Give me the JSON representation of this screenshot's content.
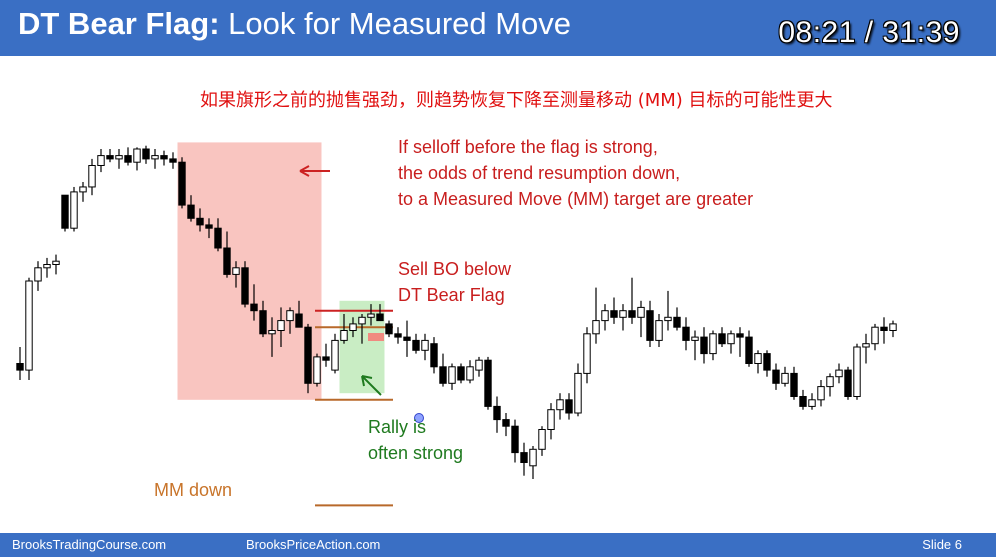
{
  "header": {
    "title_bold": "DT Bear Flag:",
    "title_rest": " Look for Measured Move",
    "timer": "08:21 / 31:39"
  },
  "annotations": {
    "chinese": "如果旗形之前的抛售强劲，则趋势恢复下降至测量移动 (MM) 目标的可能性更大",
    "selloff_1": "If selloff before the flag is strong,",
    "selloff_2": "the odds of trend resumption down,",
    "selloff_3": "to a Measured Move (MM) target are greater",
    "sell_bo_1": "Sell BO below",
    "sell_bo_2": "DT Bear Flag",
    "rally_1": "Rally is",
    "rally_2": "often strong",
    "mm_down": "MM down"
  },
  "footer": {
    "left": "BrooksTradingCourse.com",
    "center": "BrooksPriceAction.com",
    "right": "Slide  6"
  },
  "colors": {
    "header_bg": "#3a6fc4",
    "selloff_box": "#f9c5c0",
    "flag_box": "#c9edc4",
    "red_text": "#c81e1e",
    "green_text": "#1f7a1f",
    "orange_text": "#c8742a",
    "bull_candle": "#ffffff",
    "bear_candle": "#000000"
  },
  "chart_data": {
    "type": "candlestick",
    "title": "",
    "description_note": "",
    "candles": [
      [
        10,
        20,
        0,
        6
      ],
      [
        6,
        62,
        0,
        60
      ],
      [
        60,
        72,
        54,
        68
      ],
      [
        68,
        74,
        62,
        70
      ],
      [
        70,
        76,
        64,
        72
      ],
      [
        112,
        112,
        90,
        92
      ],
      [
        92,
        117,
        90,
        114
      ],
      [
        114,
        120,
        108,
        117
      ],
      [
        117,
        134,
        112,
        130
      ],
      [
        130,
        140,
        126,
        136
      ],
      [
        136,
        140,
        132,
        134
      ],
      [
        134,
        140,
        128,
        136
      ],
      [
        136,
        141,
        130,
        132
      ],
      [
        132,
        141,
        127,
        140
      ],
      [
        140,
        142,
        131,
        134
      ],
      [
        134,
        140,
        128,
        136
      ],
      [
        136,
        139,
        130,
        134
      ],
      [
        134,
        138,
        128,
        132
      ],
      [
        132,
        135,
        104,
        106
      ],
      [
        106,
        112,
        96,
        98
      ],
      [
        98,
        104,
        90,
        94
      ],
      [
        94,
        98,
        86,
        92
      ],
      [
        92,
        98,
        78,
        80
      ],
      [
        80,
        90,
        62,
        64
      ],
      [
        64,
        72,
        56,
        68
      ],
      [
        68,
        72,
        44,
        46
      ],
      [
        46,
        58,
        36,
        42
      ],
      [
        42,
        48,
        26,
        28
      ],
      [
        28,
        38,
        14,
        30
      ],
      [
        30,
        44,
        20,
        36
      ],
      [
        36,
        44,
        28,
        42
      ],
      [
        40,
        48,
        32,
        32
      ],
      [
        32,
        34,
        -8,
        -2
      ],
      [
        -2,
        16,
        -4,
        14
      ],
      [
        14,
        22,
        8,
        12
      ],
      [
        6,
        28,
        4,
        24
      ],
      [
        24,
        40,
        22,
        30
      ],
      [
        30,
        38,
        26,
        34
      ],
      [
        34,
        40,
        22,
        38
      ],
      [
        38,
        46,
        33,
        40
      ],
      [
        40,
        46,
        36,
        36
      ],
      [
        34,
        36,
        26,
        28
      ],
      [
        28,
        32,
        22,
        26
      ],
      [
        26,
        36,
        14,
        24
      ],
      [
        24,
        28,
        16,
        18
      ],
      [
        18,
        28,
        12,
        24
      ],
      [
        22,
        26,
        4,
        8
      ],
      [
        8,
        16,
        -4,
        -2
      ],
      [
        -2,
        10,
        -6,
        8
      ],
      [
        8,
        10,
        -2,
        0
      ],
      [
        0,
        12,
        -2,
        8
      ],
      [
        6,
        14,
        2,
        12
      ],
      [
        12,
        14,
        -18,
        -16
      ],
      [
        -16,
        -10,
        -32,
        -24
      ],
      [
        -24,
        -20,
        -34,
        -28
      ],
      [
        -28,
        -24,
        -50,
        -44
      ],
      [
        -44,
        -38,
        -58,
        -50
      ],
      [
        -52,
        -40,
        -60,
        -42
      ],
      [
        -42,
        -28,
        -46,
        -30
      ],
      [
        -30,
        -14,
        -36,
        -18
      ],
      [
        -18,
        -8,
        -24,
        -12
      ],
      [
        -12,
        -8,
        -24,
        -20
      ],
      [
        -20,
        10,
        -22,
        4
      ],
      [
        4,
        32,
        -2,
        28
      ],
      [
        28,
        56,
        22,
        36
      ],
      [
        36,
        46,
        30,
        42
      ],
      [
        42,
        50,
        34,
        38
      ],
      [
        38,
        46,
        30,
        42
      ],
      [
        42,
        62,
        34,
        38
      ],
      [
        38,
        48,
        26,
        44
      ],
      [
        42,
        48,
        20,
        24
      ],
      [
        24,
        40,
        20,
        36
      ],
      [
        36,
        54,
        30,
        38
      ],
      [
        38,
        44,
        30,
        32
      ],
      [
        32,
        38,
        18,
        24
      ],
      [
        24,
        30,
        12,
        26
      ],
      [
        26,
        32,
        10,
        16
      ],
      [
        16,
        30,
        12,
        28
      ],
      [
        28,
        32,
        20,
        22
      ],
      [
        22,
        30,
        16,
        28
      ],
      [
        28,
        32,
        14,
        26
      ],
      [
        26,
        30,
        8,
        10
      ],
      [
        10,
        18,
        4,
        16
      ],
      [
        16,
        18,
        2,
        6
      ],
      [
        6,
        10,
        -6,
        -2
      ],
      [
        -2,
        8,
        -4,
        4
      ],
      [
        4,
        8,
        -12,
        -10
      ],
      [
        -10,
        -6,
        -18,
        -16
      ],
      [
        -16,
        -8,
        -18,
        -12
      ],
      [
        -12,
        0,
        -16,
        -4
      ],
      [
        -4,
        4,
        -10,
        2
      ],
      [
        2,
        10,
        -2,
        6
      ],
      [
        6,
        8,
        -12,
        -10
      ],
      [
        -10,
        22,
        -12,
        20
      ],
      [
        20,
        28,
        10,
        22
      ],
      [
        22,
        34,
        18,
        32
      ],
      [
        32,
        38,
        22,
        30
      ],
      [
        30,
        36,
        26,
        34
      ]
    ],
    "candle_format": [
      "open",
      "high",
      "low",
      "close"
    ],
    "y_axis_visible": false,
    "x_axis_visible": false,
    "zones": [
      {
        "name": "selloff",
        "from_index": 18,
        "to_index": 33,
        "low": -12,
        "high": 144
      },
      {
        "name": "bear-flag",
        "from_index": 36,
        "to_index": 40,
        "low": -8,
        "high": 48
      }
    ],
    "levels": [
      {
        "name": "flag-top",
        "value": 42,
        "from_index": 33,
        "to_index": 41
      },
      {
        "name": "flag-high",
        "value": 32,
        "from_index": 33,
        "to_index": 41
      },
      {
        "name": "flag-low",
        "value": -12,
        "from_index": 33,
        "to_index": 41
      },
      {
        "name": "mm-target",
        "value": -76,
        "from_index": 33,
        "to_index": 41
      }
    ]
  }
}
